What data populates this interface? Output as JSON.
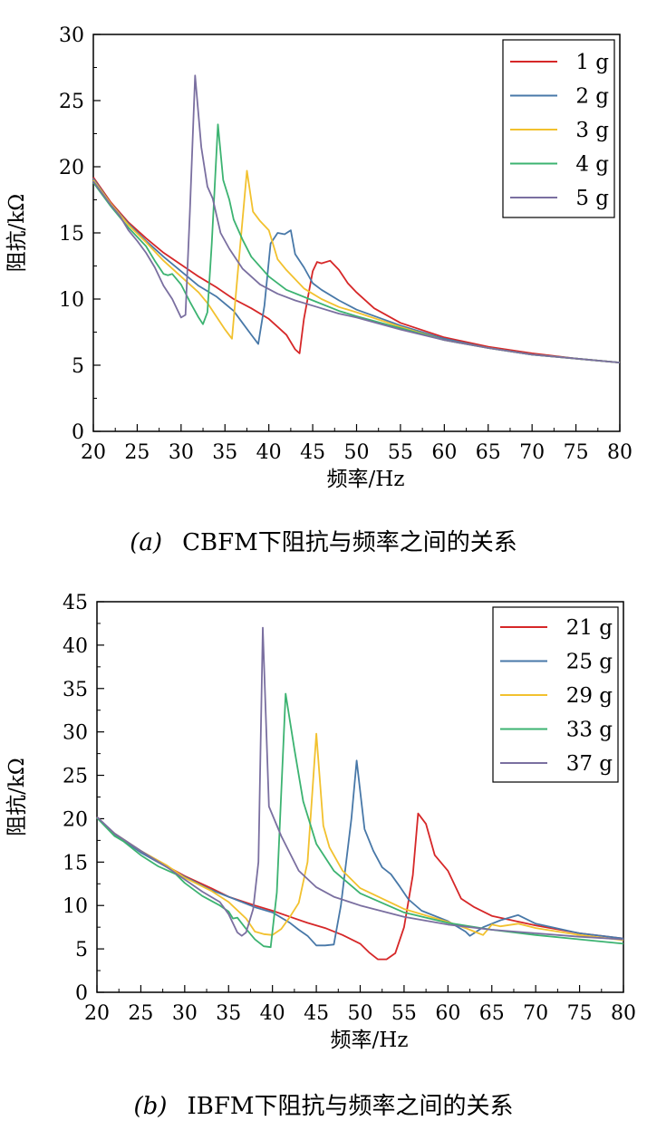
{
  "chart_data": [
    {
      "type": "line",
      "xlabel": "频率/Hz",
      "ylabel": "阻抗/kΩ",
      "xlim": [
        20,
        80
      ],
      "ylim": [
        0,
        30
      ],
      "xticks": [
        20,
        25,
        30,
        35,
        40,
        45,
        50,
        55,
        60,
        65,
        70,
        75,
        80
      ],
      "yticks": [
        0,
        5,
        10,
        15,
        20,
        25,
        30
      ],
      "grid": false,
      "legend": "top-right",
      "caption": {
        "label": "(a)",
        "text": "CBFM下阻抗与频率之间的关系"
      },
      "series": [
        {
          "name": "1 g",
          "color": "#d62728",
          "x": [
            20,
            22,
            24,
            26,
            28,
            30,
            32,
            34,
            36,
            38,
            40,
            41,
            42,
            43,
            43.5,
            44,
            45,
            45.5,
            46,
            47,
            48,
            49,
            50,
            52,
            55,
            60,
            65,
            70,
            75,
            80
          ],
          "y": [
            19.2,
            17.3,
            15.8,
            14.6,
            13.5,
            12.6,
            11.7,
            10.9,
            10.0,
            9.3,
            8.5,
            7.9,
            7.3,
            6.2,
            5.9,
            8.5,
            12.1,
            12.8,
            12.7,
            12.9,
            12.2,
            11.2,
            10.5,
            9.3,
            8.2,
            7.1,
            6.4,
            5.9,
            5.5,
            5.2
          ]
        },
        {
          "name": "2 g",
          "color": "#4878a8",
          "x": [
            20,
            22,
            24,
            26,
            28,
            30,
            32,
            34,
            36,
            37,
            38,
            38.8,
            39.5,
            40.2,
            41,
            41.8,
            42.5,
            43,
            44,
            45,
            46,
            48,
            50,
            55,
            60,
            65,
            70,
            75,
            80
          ],
          "y": [
            19.1,
            17.2,
            15.7,
            14.4,
            13.2,
            12.1,
            11.0,
            10.2,
            9.1,
            8.2,
            7.3,
            6.6,
            9.5,
            14.2,
            15.0,
            14.9,
            15.2,
            13.4,
            12.4,
            11.2,
            10.7,
            9.9,
            9.2,
            8.0,
            7.0,
            6.3,
            5.8,
            5.5,
            5.2
          ]
        },
        {
          "name": "3 g",
          "color": "#f2c12e",
          "x": [
            20,
            22,
            24,
            26,
            28,
            30,
            32,
            33,
            34,
            35,
            35.8,
            36.5,
            37.5,
            38.2,
            39,
            40,
            41,
            42,
            44,
            46,
            48,
            50,
            55,
            60,
            65,
            70,
            75,
            80
          ],
          "y": [
            19.0,
            17.2,
            15.6,
            14.3,
            12.9,
            11.7,
            10.5,
            9.7,
            8.7,
            7.7,
            7.0,
            12.3,
            19.7,
            16.6,
            15.9,
            15.2,
            13.0,
            12.2,
            10.8,
            10.0,
            9.4,
            9.0,
            7.9,
            6.9,
            6.3,
            5.8,
            5.5,
            5.2
          ]
        },
        {
          "name": "4 g",
          "color": "#3cb371",
          "x": [
            20,
            22,
            24,
            25,
            26,
            27,
            28,
            28.5,
            29,
            30,
            31,
            32,
            32.5,
            33,
            33.5,
            34.2,
            34.8,
            35.5,
            36,
            37,
            38,
            40,
            42,
            45,
            48,
            50,
            55,
            60,
            65,
            70,
            75,
            80
          ],
          "y": [
            18.8,
            17.0,
            15.4,
            14.7,
            14.0,
            12.9,
            11.9,
            11.8,
            11.9,
            11.1,
            9.8,
            8.6,
            8.1,
            9.0,
            14.2,
            23.2,
            19.0,
            17.5,
            16.0,
            14.5,
            13.2,
            11.7,
            10.7,
            9.9,
            9.1,
            8.7,
            7.8,
            6.9,
            6.3,
            5.8,
            5.5,
            5.2
          ]
        },
        {
          "name": "5 g",
          "color": "#7a6fa0",
          "x": [
            20,
            22,
            23,
            24,
            25,
            26,
            27,
            28,
            29,
            30,
            30.5,
            31,
            31.6,
            32.3,
            33,
            33.6,
            34.5,
            35.5,
            37,
            39,
            41,
            43,
            45,
            48,
            50,
            55,
            60,
            65,
            70,
            75,
            80
          ],
          "y": [
            18.9,
            17.1,
            16.3,
            15.2,
            14.4,
            13.5,
            12.4,
            11.0,
            10.0,
            8.6,
            8.8,
            16.5,
            26.9,
            21.5,
            18.5,
            17.6,
            15.0,
            13.8,
            12.3,
            11.1,
            10.4,
            9.9,
            9.5,
            8.9,
            8.6,
            7.7,
            6.9,
            6.3,
            5.8,
            5.5,
            5.2
          ]
        }
      ]
    },
    {
      "type": "line",
      "xlabel": "频率/Hz",
      "ylabel": "阻抗/kΩ",
      "xlim": [
        20,
        80
      ],
      "ylim": [
        0,
        45
      ],
      "xticks": [
        20,
        25,
        30,
        35,
        40,
        45,
        50,
        55,
        60,
        65,
        70,
        75,
        80
      ],
      "yticks": [
        0,
        5,
        10,
        15,
        20,
        25,
        30,
        35,
        40,
        45
      ],
      "grid": false,
      "legend": "top-right",
      "caption": {
        "label": "(b)",
        "text": "IBFM下阻抗与频率之间的关系"
      },
      "series": [
        {
          "name": "21 g",
          "color": "#d62728",
          "x": [
            20,
            22,
            25,
            28,
            30,
            33,
            35,
            38,
            40,
            42,
            44,
            46,
            48,
            50,
            51,
            52,
            53,
            54,
            55,
            56,
            56.6,
            57.5,
            58.5,
            60,
            61.5,
            63,
            65,
            70,
            75,
            80
          ],
          "y": [
            20.2,
            18.2,
            16.2,
            14.5,
            13.4,
            12.0,
            11.0,
            10.0,
            9.4,
            8.7,
            8.0,
            7.4,
            6.6,
            5.6,
            4.6,
            3.8,
            3.8,
            4.5,
            7.5,
            13.5,
            20.6,
            19.4,
            15.8,
            14.0,
            10.8,
            9.8,
            8.8,
            7.7,
            6.8,
            6.2
          ]
        },
        {
          "name": "25 g",
          "color": "#4878a8",
          "x": [
            20,
            22,
            25,
            28,
            30,
            33,
            35,
            38,
            40,
            42,
            43,
            44,
            45,
            46,
            47,
            47.8,
            49,
            49.6,
            50.5,
            51.5,
            52.5,
            53.5,
            54.5,
            55.5,
            57,
            60,
            62,
            62.5,
            64,
            66,
            68,
            70,
            75,
            80
          ],
          "y": [
            20.1,
            18.2,
            16.1,
            14.4,
            13.3,
            11.8,
            11.0,
            9.8,
            9.2,
            8.0,
            7.2,
            6.5,
            5.4,
            5.4,
            5.5,
            10.0,
            20.0,
            26.7,
            18.8,
            16.3,
            14.4,
            13.6,
            12.2,
            10.7,
            9.4,
            8.2,
            7.0,
            6.5,
            7.5,
            8.3,
            8.9,
            7.9,
            6.8,
            6.2
          ]
        },
        {
          "name": "29 g",
          "color": "#f2c12e",
          "x": [
            20,
            22,
            25,
            28,
            30,
            33,
            35,
            37,
            38,
            39,
            40,
            41,
            42,
            43,
            44,
            45,
            45.8,
            46.5,
            48,
            50,
            55,
            60,
            62,
            63,
            64,
            65,
            66,
            68,
            70,
            75,
            80
          ],
          "y": [
            20.1,
            18.3,
            16.3,
            14.6,
            13.2,
            11.7,
            10.4,
            8.5,
            7.0,
            6.7,
            6.6,
            7.3,
            8.7,
            10.3,
            15.0,
            29.8,
            19.2,
            16.7,
            14.0,
            12.0,
            9.6,
            8.1,
            7.4,
            7.0,
            6.6,
            7.8,
            7.6,
            7.9,
            7.4,
            6.6,
            6.0
          ]
        },
        {
          "name": "33 g",
          "color": "#3cb371",
          "x": [
            20,
            22,
            23,
            25,
            27,
            29,
            30,
            32,
            34,
            35,
            35.5,
            36,
            37,
            38,
            39,
            39.8,
            40.5,
            41.5,
            42.5,
            43.5,
            45,
            47,
            50,
            55,
            60,
            65,
            70,
            75,
            80
          ],
          "y": [
            20.1,
            18.0,
            17.4,
            15.8,
            14.5,
            13.6,
            12.6,
            11.1,
            10.0,
            9.3,
            8.5,
            8.6,
            7.3,
            6.1,
            5.3,
            5.2,
            11.5,
            34.4,
            28.0,
            22.0,
            17.1,
            14.0,
            11.4,
            9.2,
            8.0,
            7.2,
            6.6,
            6.1,
            5.6
          ]
        },
        {
          "name": "37 g",
          "color": "#7a6fa0",
          "x": [
            20,
            22,
            25,
            28,
            30,
            32,
            34,
            35,
            36,
            36.5,
            37,
            37.8,
            38.4,
            38.9,
            39.6,
            41,
            43,
            45,
            47,
            50,
            55,
            60,
            65,
            70,
            75,
            80
          ],
          "y": [
            20.2,
            18.3,
            16.3,
            14.4,
            13.0,
            11.6,
            10.4,
            9.0,
            6.9,
            6.5,
            6.9,
            9.6,
            15.0,
            42.0,
            21.4,
            18.0,
            14.0,
            12.1,
            11.0,
            10.0,
            8.7,
            7.8,
            7.2,
            6.8,
            6.4,
            6.1
          ]
        }
      ]
    }
  ]
}
